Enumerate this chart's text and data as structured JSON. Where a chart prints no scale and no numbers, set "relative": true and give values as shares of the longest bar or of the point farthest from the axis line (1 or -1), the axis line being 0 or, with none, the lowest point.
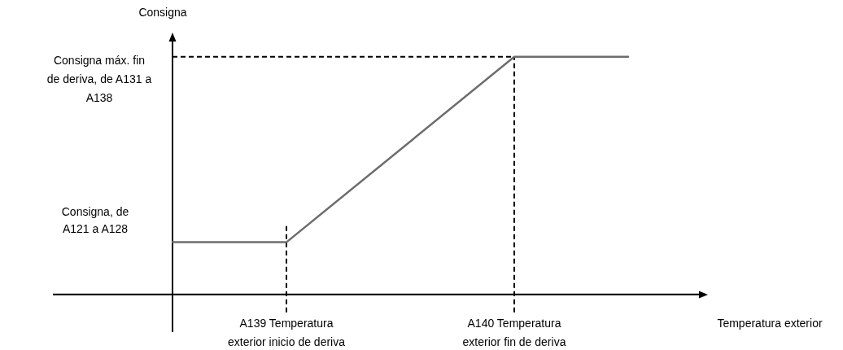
{
  "chart_data": {
    "type": "line",
    "relative": true,
    "ylabel": "Consigna",
    "xlabel": "Temperatura exterior",
    "categories": [
      null,
      "A139 Temperatura exterior inicio de deriva",
      null,
      "A140 Temperatura exterior fin de deriva",
      null
    ],
    "series": [
      {
        "color": "#6d6d6d",
        "values": [
          0.22,
          0.22,
          0.61,
          1,
          1
        ]
      }
    ],
    "ref_lines": [
      {
        "axis": "x",
        "value": "A139 Temperatura exterior inicio de deriva",
        "line_style": "dashed",
        "color": "#000000"
      },
      {
        "axis": "x",
        "value": "A140 Temperatura exterior fin de deriva",
        "line_style": "dashed",
        "color": "#000000"
      },
      {
        "axis": "y",
        "value": 1,
        "line_style": "dashed",
        "color": "#000000"
      }
    ],
    "annotations": [
      "Consigna, de A121 a A128",
      "Consigna máx. fin de deriva, de A131 a A138"
    ],
    "line_style": "solid",
    "marker": "none"
  }
}
